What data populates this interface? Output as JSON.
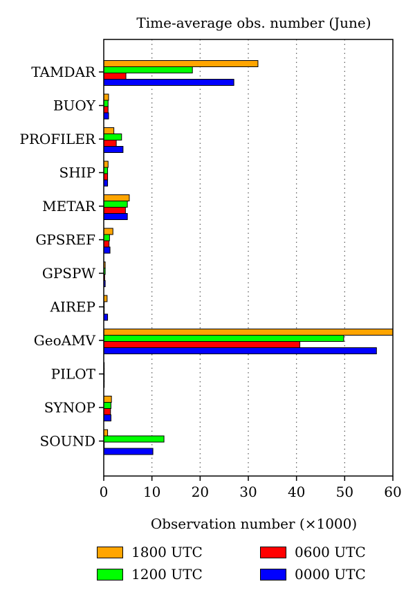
{
  "chart_data": {
    "type": "bar",
    "orientation": "horizontal",
    "title": "Time-average obs. number (June)",
    "xlabel": "Observation number (×1000)",
    "ylabel": "",
    "xlim": [
      0,
      60
    ],
    "xticks": [
      0,
      10,
      20,
      30,
      40,
      50,
      60
    ],
    "grid": "vertical dotted at x ticks",
    "legend_position": "bottom",
    "categories": [
      "TAMDAR",
      "BUOY",
      "PROFILER",
      "SHIP",
      "METAR",
      "GPSREF",
      "GPSPW",
      "AIREP",
      "GeoAMV",
      "PILOT",
      "SYNOP",
      "SOUND"
    ],
    "series": [
      {
        "name": "1800 UTC",
        "color": "#FFA500",
        "values": [
          32,
          1.0,
          2.1,
          0.9,
          5.3,
          1.9,
          0.3,
          0.7,
          61,
          0.1,
          1.6,
          0.8
        ]
      },
      {
        "name": "1200 UTC",
        "color": "#00FF00",
        "values": [
          18.4,
          0.9,
          3.7,
          0.8,
          4.9,
          1.2,
          0.3,
          0.1,
          49.8,
          0.1,
          1.5,
          12.5
        ]
      },
      {
        "name": "0600 UTC",
        "color": "#FF0000",
        "values": [
          4.6,
          0.9,
          2.6,
          0.8,
          4.5,
          1.1,
          0.2,
          0.1,
          40.7,
          0.1,
          1.4,
          0.1
        ]
      },
      {
        "name": "0000 UTC",
        "color": "#0000FF",
        "values": [
          27,
          1.0,
          4.0,
          0.8,
          4.9,
          1.3,
          0.3,
          0.8,
          56.6,
          0.1,
          1.5,
          10.2
        ]
      }
    ]
  },
  "legend": {
    "items": [
      {
        "label": "1800 UTC",
        "color": "#FFA500"
      },
      {
        "label": "0600 UTC",
        "color": "#FF0000"
      },
      {
        "label": "1200 UTC",
        "color": "#00FF00"
      },
      {
        "label": "0000 UTC",
        "color": "#0000FF"
      }
    ]
  }
}
